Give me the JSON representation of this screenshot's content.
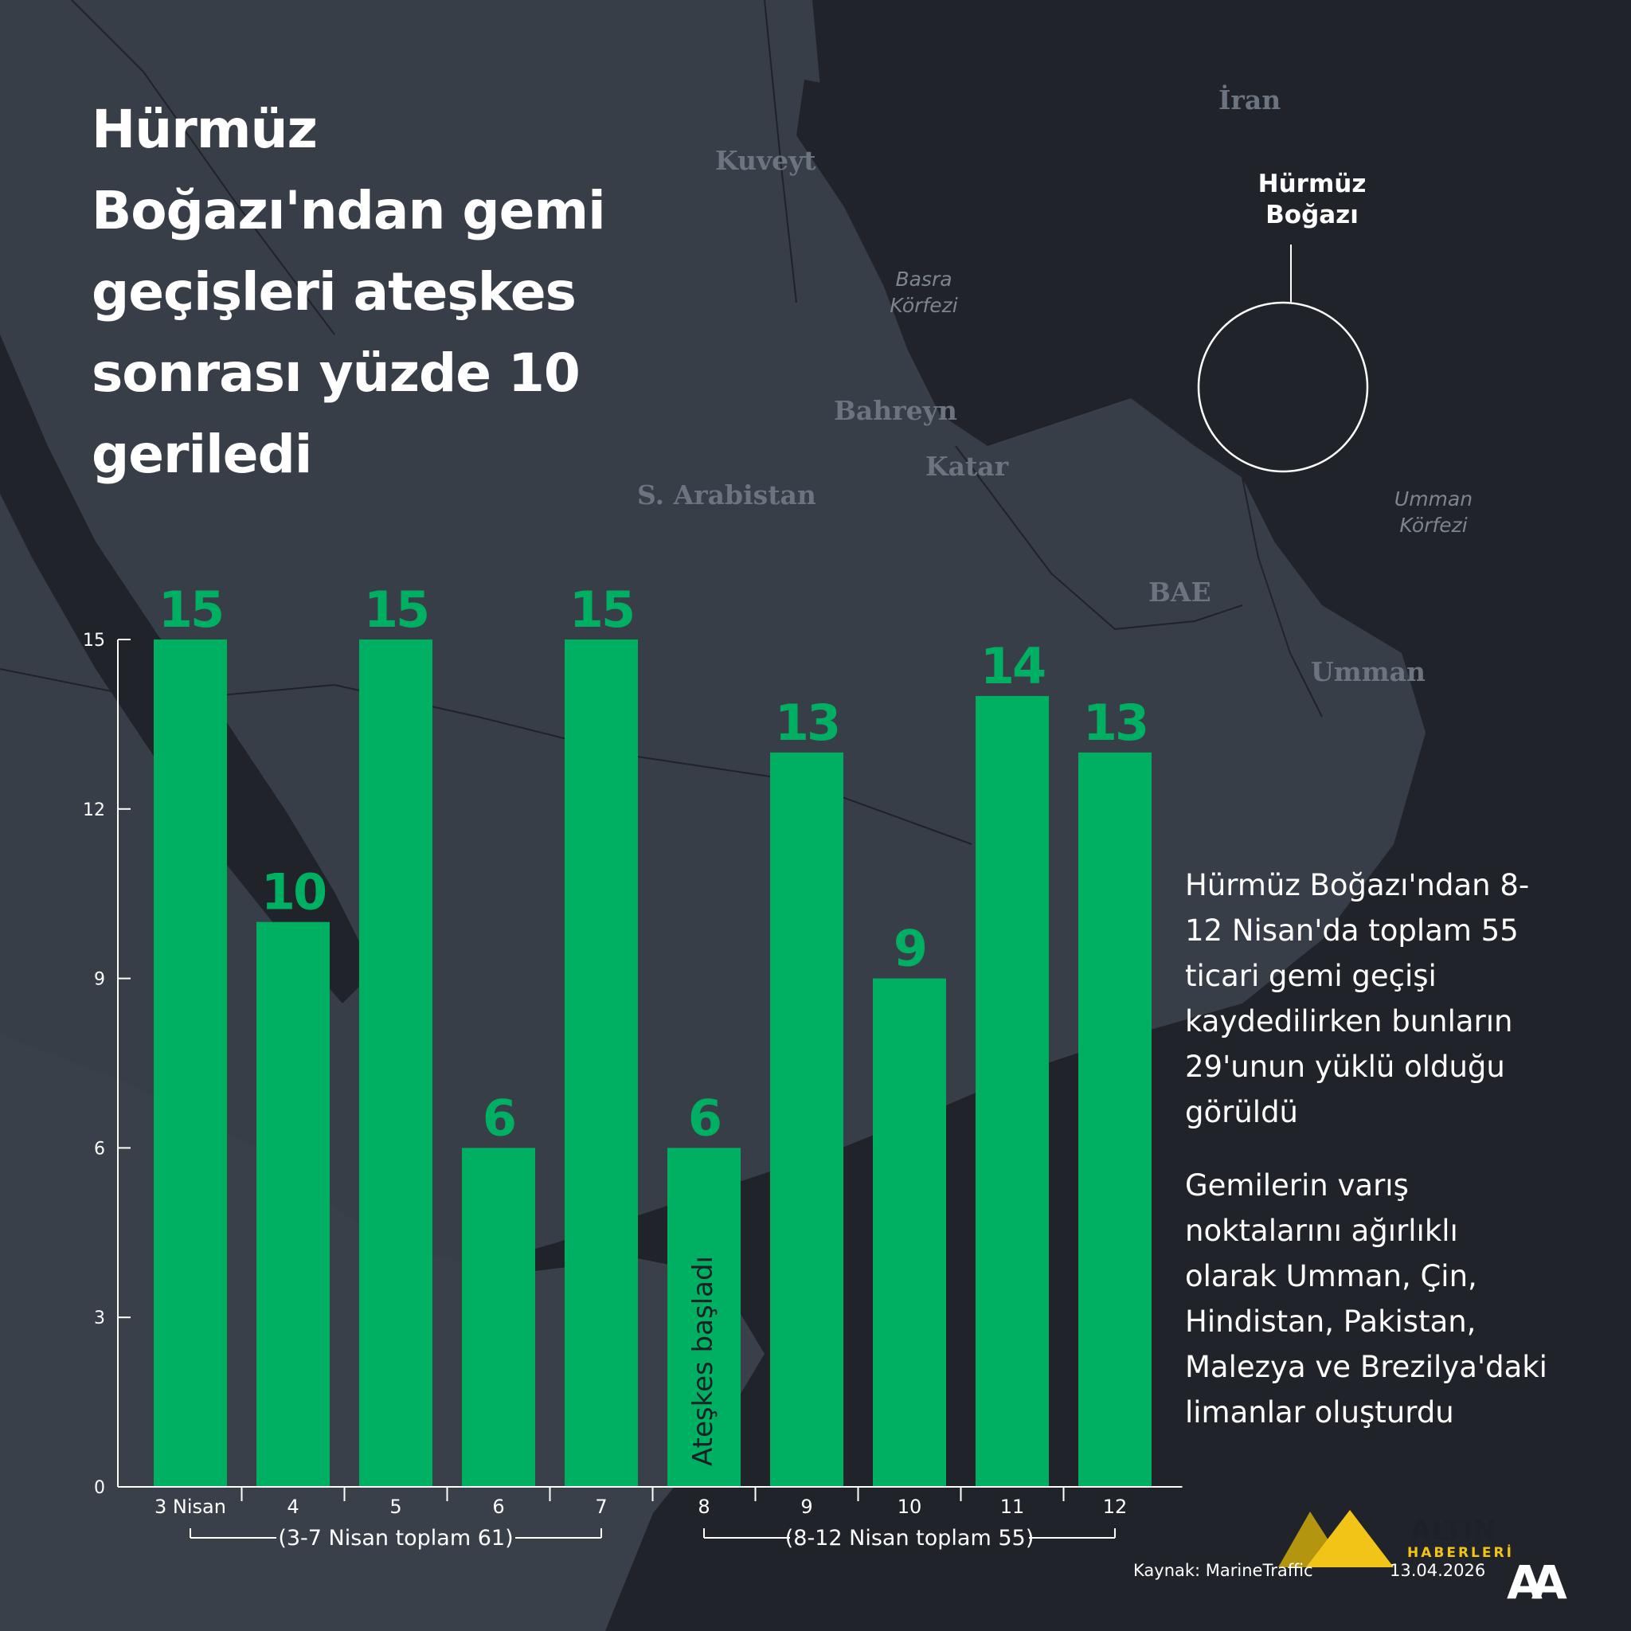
{
  "title": "Hürmüz Boğazı'ndan gemi geçişleri ateşkes sonrası yüzde 10 geriledi",
  "map_labels": {
    "iran": "İran",
    "kuveyt": "Kuveyt",
    "basra": "Basra\nKörfezi",
    "bahreyn": "Bahreyn",
    "katar": "Katar",
    "s_arabistan": "S. Arabistan",
    "bae": "BAE",
    "umman": "Umman",
    "umman_korfezi": "Umman\nKörfezi",
    "hurmuz": "Hürmüz\nBoğazı"
  },
  "colors": {
    "background": "#2b3037",
    "land": "#3a4049",
    "bar": "#00b062",
    "value_label": "#00b062",
    "axis": "#ffffff"
  },
  "chart_data": {
    "type": "bar",
    "categories": [
      "3 Nisan",
      "4",
      "5",
      "6",
      "7",
      "8",
      "9",
      "10",
      "11",
      "12"
    ],
    "values": [
      15,
      10,
      15,
      6,
      15,
      6,
      13,
      9,
      14,
      13
    ],
    "ylim": [
      0,
      15
    ],
    "yticks": [
      "0",
      "3",
      "6",
      "9",
      "12",
      "15"
    ],
    "grid": false,
    "annotation": "Ateşkes başladı",
    "groups": [
      {
        "label": "(3-7 Nisan toplam 61)"
      },
      {
        "label": "(8-12 Nisan toplam 55)"
      }
    ]
  },
  "side_text": {
    "p1": "Hürmüz Boğazı'ndan 8-12 Nisan'da toplam 55 ticari gemi geçişi kaydedilirken bunların 29'unun yüklü olduğu görüldü",
    "p2": "Gemilerin varış noktalarını ağırlıklı olarak Umman, Çin, Hindistan, Pakistan, Malezya ve Brezilya'daki limanlar oluşturdu"
  },
  "footer": {
    "source": "Kaynak: MarineTraffic",
    "date": "13.04.2026",
    "logo_brand": "ALTIN",
    "logo_sub": "HABERLERİ",
    "logo_mark": "AA"
  }
}
